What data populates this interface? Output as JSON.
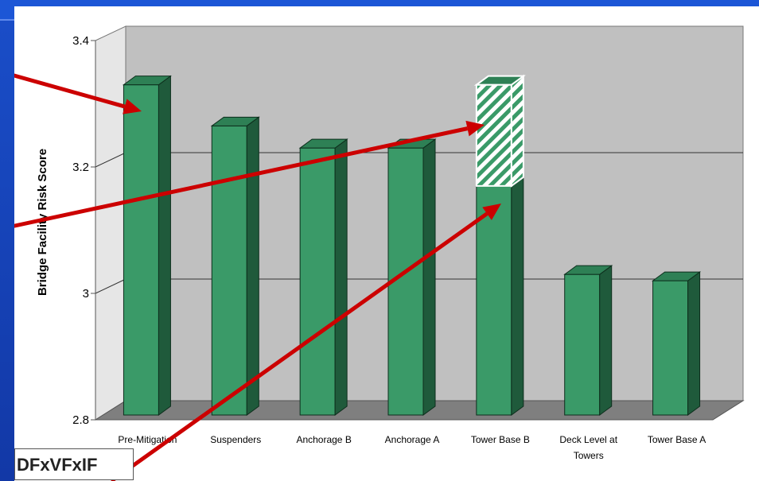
{
  "chart_data": {
    "type": "bar",
    "categories": [
      "Pre-Mitigation",
      "Suspenders",
      "Anchorage B",
      "Anchorage A",
      "Tower Base B",
      "Deck Level at Towers",
      "Tower Base A"
    ],
    "category_lines": [
      [
        "Pre-Mitigation"
      ],
      [
        "Suspenders"
      ],
      [
        "Anchorage B"
      ],
      [
        "Anchorage A"
      ],
      [
        "Tower Base B"
      ],
      [
        "Deck Level at",
        "Towers"
      ],
      [
        "Tower Base A"
      ]
    ],
    "values": [
      3.33,
      3.265,
      3.23,
      3.23,
      3.17,
      3.03,
      3.02
    ],
    "hatched_segment": {
      "category": "Tower Base B",
      "from": 3.17,
      "to": 3.33
    },
    "ylabel": "Bridge Facility Risk Score",
    "ylim": [
      2.8,
      3.4
    ],
    "yticks": [
      2.8,
      3,
      3.2,
      3.4
    ],
    "ytick_labels": [
      "2.8",
      "3",
      "3.2",
      "3.4"
    ],
    "gridlines": [
      3.0,
      3.2
    ],
    "grid": true,
    "legend": "none"
  },
  "colors": {
    "bar_front": "#3a9a68",
    "bar_side": "#1f5a3b",
    "bar_top": "#2e8055",
    "wall": "#c0c0c0",
    "floor": "#7f7f7f",
    "arrow": "#cc0000"
  },
  "formula_text": "DFxVFxIF"
}
